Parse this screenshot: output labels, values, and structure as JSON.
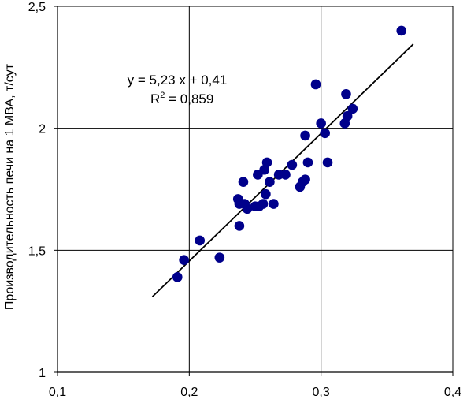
{
  "chart_data": {
    "type": "scatter",
    "title": "",
    "xlabel": "",
    "ylabel": "Производительность печи на 1 МВА, т/сут",
    "xlim": [
      0.1,
      0.4
    ],
    "ylim": [
      1,
      2.5
    ],
    "xticks": [
      {
        "value": 0.1,
        "label": "0,1"
      },
      {
        "value": 0.2,
        "label": "0,2"
      },
      {
        "value": 0.3,
        "label": "0,3"
      },
      {
        "value": 0.4,
        "label": "0,4"
      }
    ],
    "yticks": [
      {
        "value": 1.0,
        "label": "1"
      },
      {
        "value": 1.5,
        "label": "1,5"
      },
      {
        "value": 2.0,
        "label": "2"
      },
      {
        "value": 2.5,
        "label": "2,5"
      }
    ],
    "grid": true,
    "marker_color": "#00008B",
    "line_color": "#000000",
    "points": [
      {
        "x": 0.191,
        "y": 1.39
      },
      {
        "x": 0.196,
        "y": 1.46
      },
      {
        "x": 0.208,
        "y": 1.54
      },
      {
        "x": 0.223,
        "y": 1.47
      },
      {
        "x": 0.238,
        "y": 1.6
      },
      {
        "x": 0.237,
        "y": 1.71
      },
      {
        "x": 0.238,
        "y": 1.69
      },
      {
        "x": 0.242,
        "y": 1.69
      },
      {
        "x": 0.244,
        "y": 1.67
      },
      {
        "x": 0.241,
        "y": 1.78
      },
      {
        "x": 0.25,
        "y": 1.68
      },
      {
        "x": 0.253,
        "y": 1.68
      },
      {
        "x": 0.256,
        "y": 1.69
      },
      {
        "x": 0.258,
        "y": 1.73
      },
      {
        "x": 0.252,
        "y": 1.81
      },
      {
        "x": 0.257,
        "y": 1.83
      },
      {
        "x": 0.259,
        "y": 1.86
      },
      {
        "x": 0.261,
        "y": 1.78
      },
      {
        "x": 0.264,
        "y": 1.69
      },
      {
        "x": 0.268,
        "y": 1.81
      },
      {
        "x": 0.273,
        "y": 1.81
      },
      {
        "x": 0.278,
        "y": 1.85
      },
      {
        "x": 0.284,
        "y": 1.76
      },
      {
        "x": 0.286,
        "y": 1.78
      },
      {
        "x": 0.288,
        "y": 1.79
      },
      {
        "x": 0.288,
        "y": 1.97
      },
      {
        "x": 0.29,
        "y": 1.86
      },
      {
        "x": 0.296,
        "y": 2.18
      },
      {
        "x": 0.3,
        "y": 2.02
      },
      {
        "x": 0.303,
        "y": 1.98
      },
      {
        "x": 0.305,
        "y": 1.86
      },
      {
        "x": 0.318,
        "y": 2.02
      },
      {
        "x": 0.319,
        "y": 2.14
      },
      {
        "x": 0.32,
        "y": 2.05
      },
      {
        "x": 0.324,
        "y": 2.08
      },
      {
        "x": 0.361,
        "y": 2.4
      }
    ],
    "trendline": {
      "slope": 5.23,
      "intercept": 0.41,
      "x_range": [
        0.172,
        0.37
      ]
    },
    "annotations": {
      "equation": "y = 5,23 x + 0,41",
      "r2_prefix": "R",
      "r2_superscript": "2",
      "r2_suffix": " = 0,859"
    }
  }
}
